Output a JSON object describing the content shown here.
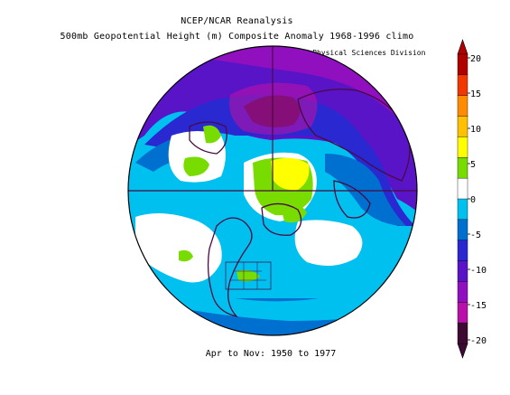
{
  "header": {
    "title": "NCEP/NCAR Reanalysis",
    "subtitle": "500mb Geopotential Height (m) Composite Anomaly 1968-1996 climo",
    "credit": "NOAA/ESRL Physical Sciences Division"
  },
  "footer": {
    "period": "Apr to Nov: 1950 to 1977"
  },
  "map": {
    "projection": "north-polar-stereographic",
    "field": "500mb geopotential height anomaly"
  },
  "colorbar": {
    "ticks": [
      "20",
      "15",
      "10",
      "5",
      "0",
      "-5",
      "-10",
      "-15",
      "-20"
    ],
    "colors": [
      "#b00000",
      "#f03800",
      "#ff8c00",
      "#ffc000",
      "#ffff00",
      "#78dc00",
      "#ffffff",
      "#00c0f0",
      "#0070d0",
      "#2a28d0",
      "#5a14c8",
      "#9010c0",
      "#b810a8",
      "#3c0a32"
    ]
  }
}
